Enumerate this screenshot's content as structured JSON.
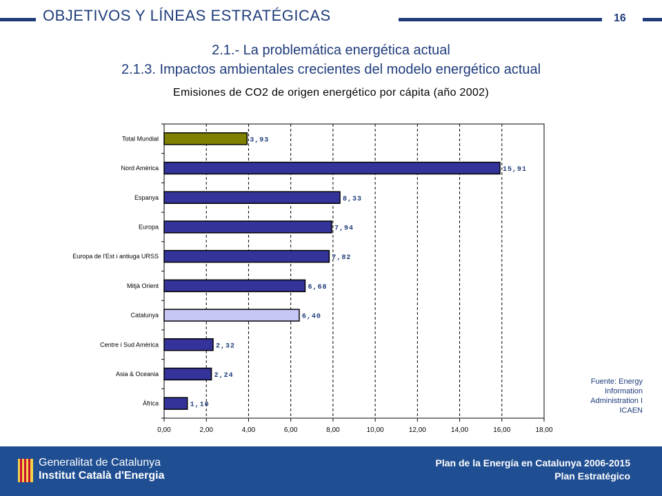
{
  "header": {
    "title": "OBJETIVOS Y LÍNEAS ESTRATÉGICAS",
    "page_number": "16"
  },
  "subtitle": {
    "line1": "2.1.- La problemática energética actual",
    "line2": "2.1.3. Impactos ambientales crecientes del modelo energético actual"
  },
  "chart_data": {
    "type": "bar",
    "orientation": "horizontal",
    "title": "Emisiones de CO2 de origen energético por cápita (año 2002)",
    "categories": [
      "Total Mundial",
      "Nord Amèrica",
      "Espanya",
      "Europa",
      "Europa de l'Est i antiuga URSS",
      "Mitjà Orient",
      "Catalunya",
      "Centre i Sud Amèrica",
      "Asia & Oceania",
      "Àfrica"
    ],
    "values": [
      3.93,
      15.91,
      8.33,
      7.94,
      7.82,
      6.68,
      6.4,
      2.32,
      2.24,
      1.1
    ],
    "value_labels": [
      "3,93",
      "15,91",
      "8,33",
      "7,94",
      "7,82",
      "6,68",
      "6,40",
      "2,32",
      "2,24",
      "1,10"
    ],
    "bar_colors": [
      "#808000",
      "#333399",
      "#333399",
      "#333399",
      "#333399",
      "#333399",
      "#c7c7f5",
      "#333399",
      "#333399",
      "#333399"
    ],
    "xlim": [
      0,
      18
    ],
    "x_ticks": [
      0,
      2,
      4,
      6,
      8,
      10,
      12,
      14,
      16,
      18
    ],
    "x_tick_labels": [
      "0,00",
      "2,00",
      "4,00",
      "6,00",
      "8,00",
      "10,00",
      "12,00",
      "14,00",
      "16,00",
      "18,00"
    ],
    "grid": "vertical-dashed",
    "xlabel": "",
    "ylabel": ""
  },
  "source": "Fuente: Energy Information Administration I ICAEN",
  "footer": {
    "org_line1": "Generalitat de Catalunya",
    "org_line2": "Institut Català d'Energia",
    "plan_title": "Plan de la Energía en Catalunya 2006-2015",
    "plan_subtitle": "Plan Estratégico"
  },
  "colors": {
    "brand_blue": "#1f3c7a",
    "footer_blue": "#1f4e92",
    "value_label": "#1f3c7a"
  }
}
